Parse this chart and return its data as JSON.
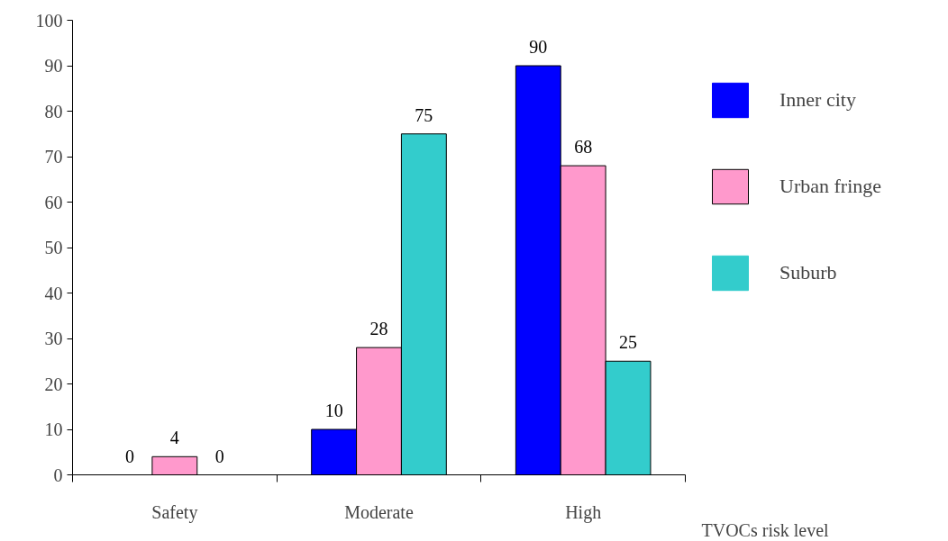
{
  "chart_data": {
    "type": "bar",
    "xlabel": "TVOCs risk level",
    "categories": [
      "Safety",
      "Moderate",
      "High"
    ],
    "series": [
      {
        "name": "Inner city",
        "color": "#0000ff",
        "values": [
          0,
          10,
          90
        ]
      },
      {
        "name": "Urban fringe",
        "color": "#ff99cc",
        "values": [
          4,
          28,
          68
        ]
      },
      {
        "name": "Suburb",
        "color": "#33cccc",
        "values": [
          0,
          75,
          25
        ]
      }
    ],
    "ylim": [
      0,
      100
    ],
    "yticks": [
      0,
      10,
      20,
      30,
      40,
      50,
      60,
      70,
      80,
      90,
      100
    ],
    "data_labels": true,
    "grid": false,
    "legend": "right"
  }
}
